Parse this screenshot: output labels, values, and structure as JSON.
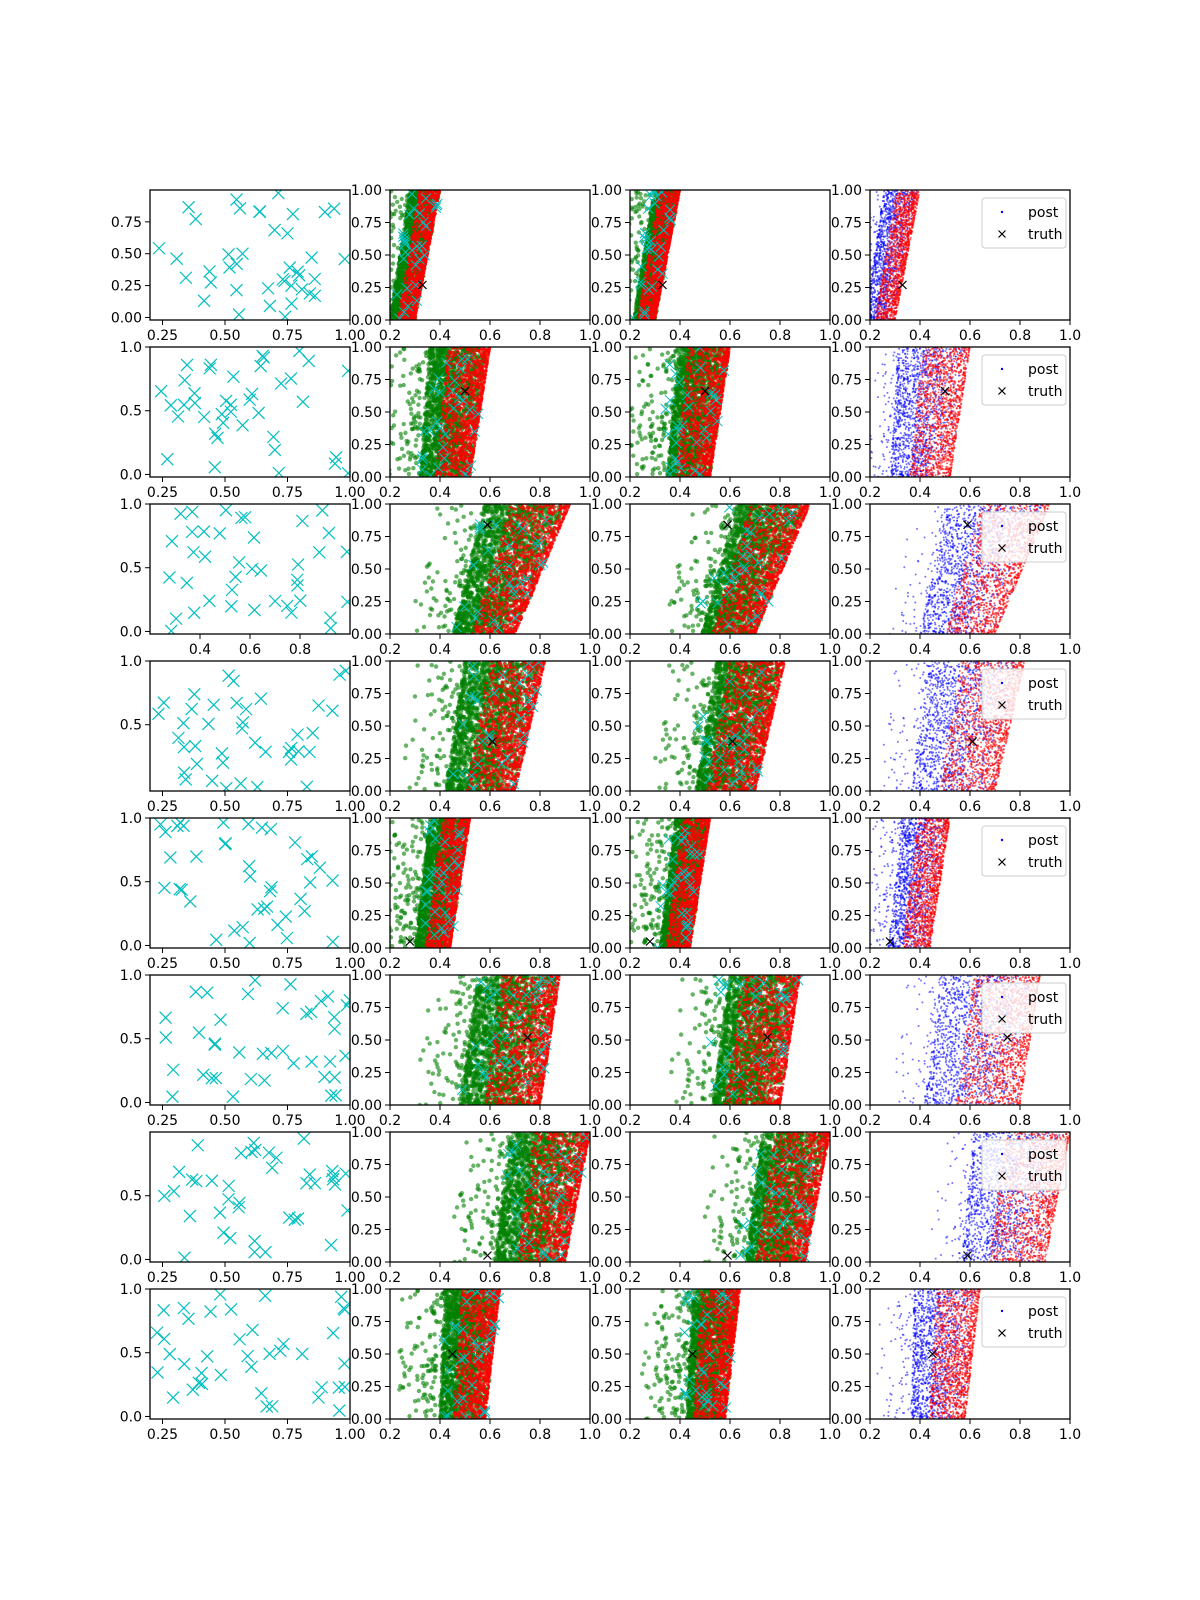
{
  "chart_data": {
    "type": "scatter",
    "layout": {
      "rows": 8,
      "cols": 4
    },
    "colors": {
      "samples": "#00bfbf",
      "green_scatter": "#008000",
      "red_scatter": "#ff0000",
      "blue_scatter": "#0000ff",
      "truth": "#000000"
    },
    "legend": {
      "placement": "upper right",
      "entries": [
        "post",
        "truth"
      ]
    },
    "column_xlim": [
      [
        0.2,
        1.0
      ],
      [
        0.2,
        1.0
      ],
      [
        0.2,
        1.0
      ],
      [
        0.2,
        1.0
      ]
    ],
    "column_ylim": [
      [
        -0.02,
        1.0
      ],
      [
        0.0,
        1.0
      ],
      [
        0.0,
        1.0
      ],
      [
        0.0,
        1.0
      ]
    ],
    "col2_3_yticks": [
      "0.00",
      "0.25",
      "0.50",
      "0.75",
      "1.00"
    ],
    "col2_4_xticks": [
      "0.2",
      "0.4",
      "0.6",
      "0.8",
      "1.0"
    ],
    "rows": [
      {
        "truth": [
          0.33,
          0.27
        ],
        "col1_xticks": [
          "0.25",
          "0.50",
          "0.75",
          "1.00"
        ],
        "col1_yticks": [
          "0.00",
          "0.25",
          "0.50",
          "0.75"
        ],
        "band_bottom": [
          0.2,
          0.3
        ],
        "band_top": [
          0.28,
          0.4
        ]
      },
      {
        "truth": [
          0.5,
          0.66
        ],
        "col1_xticks": [
          "0.25",
          "0.50",
          "0.75",
          "1.00"
        ],
        "col1_yticks": [
          "0.0",
          "0.5",
          "1.0"
        ],
        "band_bottom": [
          0.32,
          0.52
        ],
        "band_top": [
          0.36,
          0.6
        ]
      },
      {
        "truth": [
          0.59,
          0.84
        ],
        "col1_xticks": [
          "0.4",
          "0.6",
          "0.8"
        ],
        "col1_yticks": [
          "0.0",
          "0.5",
          "1.0"
        ],
        "band_bottom": [
          0.45,
          0.7
        ],
        "band_top": [
          0.58,
          0.92
        ]
      },
      {
        "truth": [
          0.61,
          0.38
        ],
        "col1_xticks": [
          "0.25",
          "0.50",
          "0.75",
          "1.00"
        ],
        "col1_yticks": [
          "0.5",
          "1.0"
        ],
        "band_bottom": [
          0.42,
          0.7
        ],
        "band_top": [
          0.5,
          0.82
        ]
      },
      {
        "truth": [
          0.28,
          0.05
        ],
        "col1_xticks": [
          "0.25",
          "0.50",
          "0.75",
          "1.00"
        ],
        "col1_yticks": [
          "0.0",
          "0.5",
          "1.0"
        ],
        "band_bottom": [
          0.3,
          0.44
        ],
        "band_top": [
          0.36,
          0.52
        ]
      },
      {
        "truth": [
          0.75,
          0.52
        ],
        "col1_xticks": [
          "0.25",
          "0.50",
          "0.75",
          "1.00"
        ],
        "col1_yticks": [
          "0.0",
          "0.5",
          "1.0"
        ],
        "band_bottom": [
          0.48,
          0.8
        ],
        "band_top": [
          0.55,
          0.88
        ]
      },
      {
        "truth": [
          0.59,
          0.05
        ],
        "col1_xticks": [
          "0.25",
          "0.50",
          "0.75",
          "1.00"
        ],
        "col1_yticks": [
          "0.0",
          "0.5"
        ],
        "band_bottom": [
          0.62,
          0.9
        ],
        "band_top": [
          0.68,
          1.0
        ]
      },
      {
        "truth": [
          0.45,
          0.5
        ],
        "col1_xticks": [
          "0.25",
          "0.50",
          "0.75",
          "1.00"
        ],
        "col1_yticks": [
          "0.0",
          "0.5",
          "1.0"
        ],
        "band_bottom": [
          0.4,
          0.58
        ],
        "band_top": [
          0.42,
          0.64
        ]
      }
    ]
  }
}
